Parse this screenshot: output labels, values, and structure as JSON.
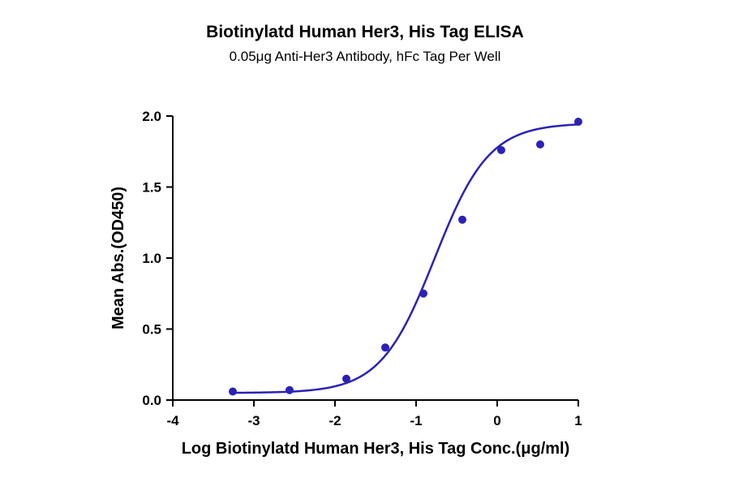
{
  "chart_data": {
    "type": "scatter",
    "title": "Biotinylatd Human Her3, His Tag ELISA",
    "subtitle": "0.05μg Anti-Her3 Antibody, hFc Tag Per Well",
    "xlabel": "Log Biotinylatd Human Her3, His Tag Conc.(μg/ml)",
    "ylabel": "Mean Abs.(OD450)",
    "xlim": [
      -4,
      1
    ],
    "ylim": [
      0,
      2.0
    ],
    "x_ticks": [
      -4,
      -3,
      -2,
      -1,
      0,
      1
    ],
    "y_ticks": [
      0.0,
      0.5,
      1.0,
      1.5,
      2.0
    ],
    "x_tick_labels": [
      "-4",
      "-3",
      "-2",
      "-1",
      "0",
      "1"
    ],
    "y_tick_labels": [
      "0.0",
      "0.5",
      "1.0",
      "1.5",
      "2.0"
    ],
    "grid": false,
    "color": "#2b22b5",
    "series": [
      {
        "x": [
          -3.26,
          -2.56,
          -1.86,
          -1.38,
          -0.91,
          -0.43,
          0.05,
          0.53,
          1.0
        ],
        "y": [
          0.06,
          0.07,
          0.15,
          0.37,
          0.75,
          1.27,
          1.76,
          1.8,
          1.96
        ]
      }
    ],
    "fit_curve": {
      "model": "4PL",
      "bottom": 0.05,
      "top": 1.95,
      "log_ec50": -0.77,
      "hill_slope": 1.3
    }
  }
}
